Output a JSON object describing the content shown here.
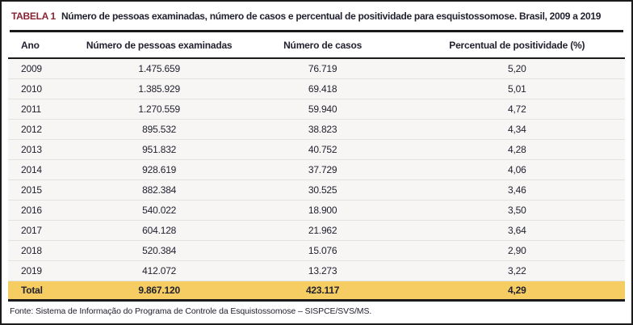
{
  "table": {
    "label": "TABELA 1",
    "title": "Número de pessoas examinadas, número de casos e percentual de positividade para esquistossomose. Brasil, 2009 a 2019",
    "columns": [
      "Ano",
      "Número de pessoas examinadas",
      "Número de casos",
      "Percentual de positividade (%)"
    ],
    "rows": [
      [
        "2009",
        "1.475.659",
        "76.719",
        "5,20"
      ],
      [
        "2010",
        "1.385.929",
        "69.418",
        "5,01"
      ],
      [
        "2011",
        "1.270.559",
        "59.940",
        "4,72"
      ],
      [
        "2012",
        "895.532",
        "38.823",
        "4,34"
      ],
      [
        "2013",
        "951.832",
        "40.752",
        "4,28"
      ],
      [
        "2014",
        "928.619",
        "37.729",
        "4,06"
      ],
      [
        "2015",
        "882.384",
        "30.525",
        "3,46"
      ],
      [
        "2016",
        "540.022",
        "18.900",
        "3,50"
      ],
      [
        "2017",
        "604.128",
        "21.962",
        "3,64"
      ],
      [
        "2018",
        "520.384",
        "15.076",
        "2,90"
      ],
      [
        "2019",
        "412.072",
        "13.273",
        "3,22"
      ]
    ],
    "total_row": [
      "Total",
      "9.867.120",
      "423.117",
      "4,29"
    ],
    "source": "Fonte: Sistema de Informação do Programa de Controle da Esquistossomose – SISPCE/SVS/MS.",
    "colors": {
      "label": "#8a2232",
      "text": "#222230",
      "rule": "#1b1b1b",
      "total_bg": "#f5cd62",
      "row_bg": "#f7f6f4",
      "row_border": "#e3e2de"
    }
  },
  "chart_data": {
    "type": "table",
    "title": "Número de pessoas examinadas, número de casos e percentual de positividade para esquistossomose. Brasil, 2009 a 2019",
    "categories": [
      2009,
      2010,
      2011,
      2012,
      2013,
      2014,
      2015,
      2016,
      2017,
      2018,
      2019
    ],
    "series": [
      {
        "name": "Número de pessoas examinadas",
        "values": [
          1475659,
          1385929,
          1270559,
          895532,
          951832,
          928619,
          882384,
          540022,
          604128,
          520384,
          412072
        ]
      },
      {
        "name": "Número de casos",
        "values": [
          76719,
          69418,
          59940,
          38823,
          40752,
          37729,
          30525,
          18900,
          21962,
          15076,
          13273
        ]
      },
      {
        "name": "Percentual de positividade (%)",
        "values": [
          5.2,
          5.01,
          4.72,
          4.34,
          4.28,
          4.06,
          3.46,
          3.5,
          3.64,
          2.9,
          3.22
        ]
      }
    ],
    "totals": {
      "Número de pessoas examinadas": 9867120,
      "Número de casos": 423117,
      "Percentual de positividade (%)": 4.29
    },
    "source": "Fonte: Sistema de Informação do Programa de Controle da Esquistossomose – SISPCE/SVS/MS."
  }
}
